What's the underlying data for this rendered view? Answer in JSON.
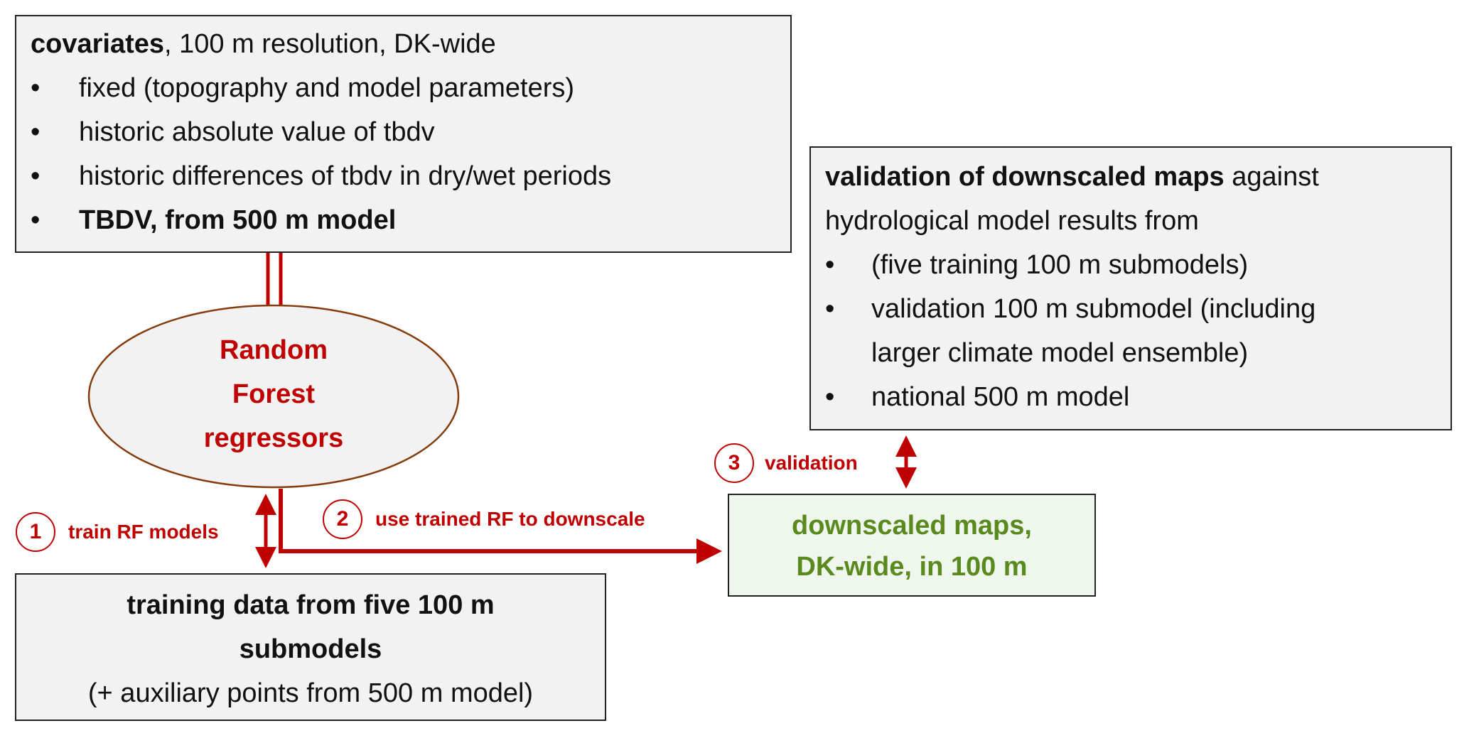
{
  "covariates": {
    "title_bold": "covariates",
    "title_rest": ", 100 m resolution, DK-wide",
    "items": [
      "fixed (topography and model parameters)",
      "historic absolute value of tbdv",
      "historic differences of tbdv in dry/wet periods"
    ],
    "bold_item": "TBDV, from 500 m model"
  },
  "rf": {
    "lines": [
      "Random",
      "Forest",
      "regressors"
    ]
  },
  "training": {
    "lines_bold": [
      "training data from five 100 m",
      "submodels"
    ],
    "line_normal": "(+ auxiliary points from 500 m model)"
  },
  "downscaled": {
    "lines": [
      "downscaled maps,",
      "DK-wide, in 100 m"
    ]
  },
  "validation_box": {
    "title_bold": "validation of downscaled maps",
    "title_rest": " against",
    "line2": "hydrological model results from",
    "items": [
      "(five training 100 m submodels)",
      "validation 100 m submodel (including",
      "national 500 m model"
    ],
    "item2_cont": "larger climate model ensemble)"
  },
  "steps": [
    {
      "number": "1",
      "label": "train RF models"
    },
    {
      "number": "2",
      "label": "use trained RF to downscale"
    },
    {
      "number": "3",
      "label": "validation"
    }
  ],
  "colors": {
    "arrow": "#c00000",
    "box_fill": "#f2f2f2",
    "downscaled_fill": "#eef6ee",
    "downscaled_text": "#5a8a1e",
    "rf_text": "#c00000",
    "ellipse_stroke": "#843c0c"
  }
}
